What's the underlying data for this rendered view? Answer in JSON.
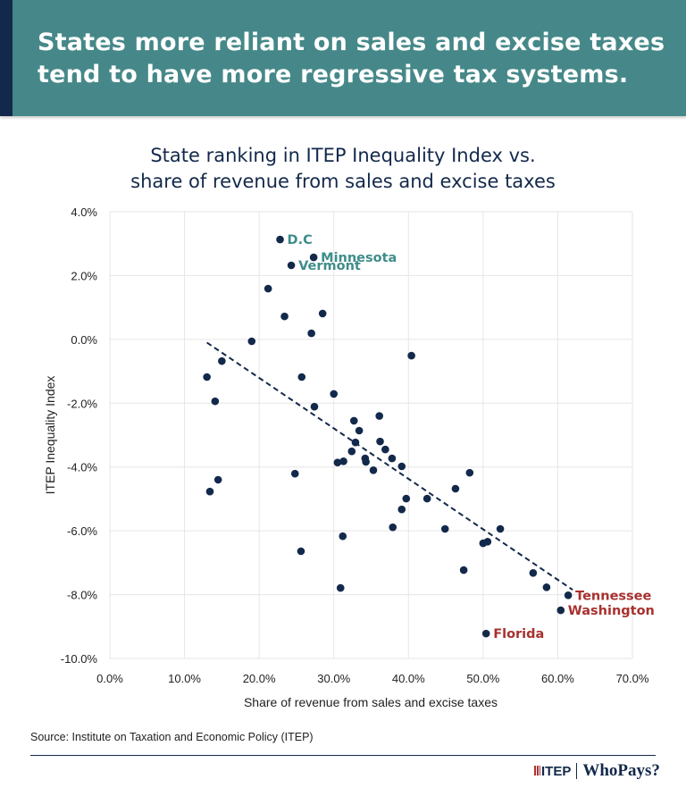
{
  "header": {
    "title_line1": "States more reliant on sales and excise taxes",
    "title_line2": "tend to have more regressive tax systems."
  },
  "colors": {
    "header_bg": "#468889",
    "accent_dark": "#13294b",
    "label_teal": "#3e8d8a",
    "label_red": "#a8312f",
    "point": "#13294b"
  },
  "chart_data": {
    "type": "scatter",
    "title_line1": "State ranking in ITEP Inequality Index vs.",
    "title_line2": "share of revenue from sales and excise taxes",
    "xlabel": "Share of revenue from sales and excise taxes",
    "ylabel": "ITEP Inequality Index",
    "xlim": [
      0,
      70
    ],
    "ylim": [
      -10,
      4
    ],
    "xticks": [
      "0.0%",
      "10.0%",
      "20.0%",
      "30.0%",
      "40.0%",
      "50.0%",
      "60.0%",
      "70.0%"
    ],
    "yticks": [
      "4.0%",
      "2.0%",
      "0.0%",
      "-2.0%",
      "-4.0%",
      "-6.0%",
      "-8.0%",
      "-10.0%"
    ],
    "grid": true,
    "trendline": {
      "x": [
        13,
        62
      ],
      "y": [
        -0.1,
        -7.85
      ],
      "style": "dashed"
    },
    "points": [
      {
        "x": 22.8,
        "y": 3.13,
        "label": "D.C",
        "label_color": "teal"
      },
      {
        "x": 27.3,
        "y": 2.57,
        "label": "Minnesota",
        "label_color": "teal"
      },
      {
        "x": 24.3,
        "y": 2.32,
        "label": "Vermont",
        "label_color": "teal"
      },
      {
        "x": 21.2,
        "y": 1.59
      },
      {
        "x": 23.4,
        "y": 0.72
      },
      {
        "x": 28.5,
        "y": 0.81
      },
      {
        "x": 27.0,
        "y": 0.19
      },
      {
        "x": 19.0,
        "y": -0.06
      },
      {
        "x": 15.0,
        "y": -0.68
      },
      {
        "x": 13.0,
        "y": -1.18
      },
      {
        "x": 40.4,
        "y": -0.51
      },
      {
        "x": 25.7,
        "y": -1.18
      },
      {
        "x": 14.1,
        "y": -1.94
      },
      {
        "x": 30.0,
        "y": -1.71
      },
      {
        "x": 27.4,
        "y": -2.11
      },
      {
        "x": 36.1,
        "y": -2.4
      },
      {
        "x": 32.7,
        "y": -2.55
      },
      {
        "x": 33.4,
        "y": -2.86
      },
      {
        "x": 32.9,
        "y": -3.23
      },
      {
        "x": 36.2,
        "y": -3.2
      },
      {
        "x": 32.4,
        "y": -3.51
      },
      {
        "x": 36.9,
        "y": -3.45
      },
      {
        "x": 34.2,
        "y": -3.73
      },
      {
        "x": 34.3,
        "y": -3.84
      },
      {
        "x": 37.8,
        "y": -3.73
      },
      {
        "x": 30.5,
        "y": -3.86
      },
      {
        "x": 31.3,
        "y": -3.82
      },
      {
        "x": 35.3,
        "y": -4.1
      },
      {
        "x": 39.1,
        "y": -3.98
      },
      {
        "x": 48.2,
        "y": -4.18
      },
      {
        "x": 24.8,
        "y": -4.21
      },
      {
        "x": 14.5,
        "y": -4.4
      },
      {
        "x": 13.4,
        "y": -4.77
      },
      {
        "x": 46.3,
        "y": -4.68
      },
      {
        "x": 39.7,
        "y": -4.99
      },
      {
        "x": 42.5,
        "y": -4.99
      },
      {
        "x": 39.1,
        "y": -5.33
      },
      {
        "x": 52.3,
        "y": -5.94
      },
      {
        "x": 44.9,
        "y": -5.94
      },
      {
        "x": 37.9,
        "y": -5.89
      },
      {
        "x": 31.2,
        "y": -6.17
      },
      {
        "x": 50.6,
        "y": -6.34
      },
      {
        "x": 50.0,
        "y": -6.39
      },
      {
        "x": 25.6,
        "y": -6.64
      },
      {
        "x": 47.4,
        "y": -7.23
      },
      {
        "x": 56.7,
        "y": -7.32
      },
      {
        "x": 58.5,
        "y": -7.77
      },
      {
        "x": 30.9,
        "y": -7.79
      },
      {
        "x": 61.4,
        "y": -8.02,
        "label": "Tennessee",
        "label_color": "red"
      },
      {
        "x": 60.4,
        "y": -8.49,
        "label": "Washington",
        "label_color": "red"
      },
      {
        "x": 50.4,
        "y": -9.22,
        "label": "Florida",
        "label_color": "red"
      }
    ]
  },
  "footer": {
    "source": "Source: Institute on Taxation and Economic Policy (ITEP)",
    "logo_itep": "ITEP",
    "logo_whopays": "WhoPays?"
  }
}
